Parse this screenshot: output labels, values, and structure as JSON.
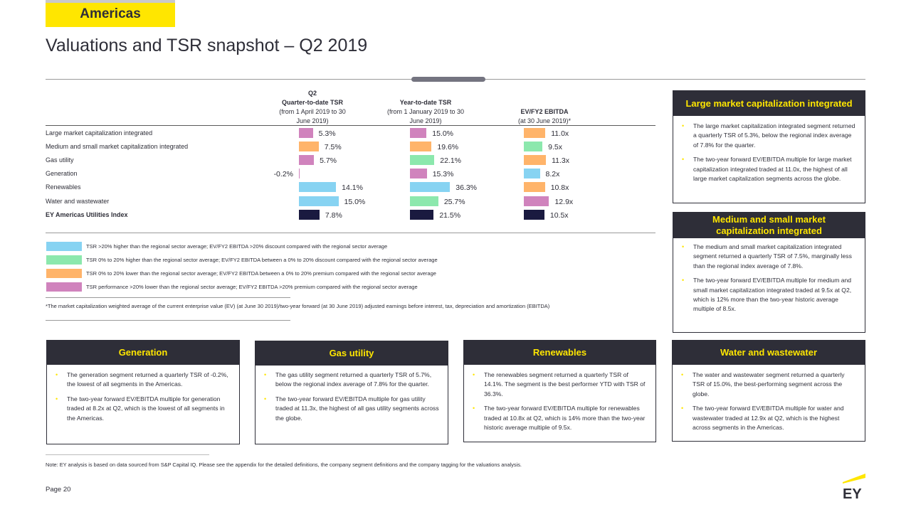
{
  "region": "Americas",
  "title": "Valuations and TSR snapshot – Q2 2019",
  "table": {
    "col_q2": {
      "l1": "Q2",
      "l2": "Quarter-to-date TSR",
      "l3": "(from 1 April 2019 to 30",
      "l4": "June 2019)"
    },
    "col_ytd": {
      "l1": "Year-to-date TSR",
      "l2": "(from 1 January 2019  to 30",
      "l3": "June 2019)"
    },
    "col_ev": {
      "l1": "EV/FY2 EBITDA",
      "l2": "(at 30 June 2019)*"
    },
    "rows": [
      {
        "label": "Large market capitalization integrated",
        "bold": false,
        "q2": "5.3%",
        "q2_v": 5.3,
        "q2_c": "pink",
        "ytd": "15.0%",
        "ytd_v": 15.0,
        "ytd_c": "pink",
        "ev": "11.0x",
        "ev_v": 11.0,
        "ev_c": "orange"
      },
      {
        "label": "Medium and small market capitalization integrated",
        "bold": false,
        "q2": "7.5%",
        "q2_v": 7.5,
        "q2_c": "orange",
        "ytd": "19.6%",
        "ytd_v": 19.6,
        "ytd_c": "orange",
        "ev": "9.5x",
        "ev_v": 9.5,
        "ev_c": "green"
      },
      {
        "label": "Gas utility",
        "bold": false,
        "q2": "5.7%",
        "q2_v": 5.7,
        "q2_c": "pink",
        "ytd": "22.1%",
        "ytd_v": 22.1,
        "ytd_c": "green",
        "ev": "11.3x",
        "ev_v": 11.3,
        "ev_c": "orange"
      },
      {
        "label": "Generation",
        "bold": false,
        "q2": "-0.2%",
        "q2_v": -0.2,
        "q2_c": "pink",
        "ytd": "15.3%",
        "ytd_v": 15.3,
        "ytd_c": "pink",
        "ev": "8.2x",
        "ev_v": 8.2,
        "ev_c": "blue"
      },
      {
        "label": "Renewables",
        "bold": false,
        "q2": "14.1%",
        "q2_v": 14.1,
        "q2_c": "blue",
        "ytd": "36.3%",
        "ytd_v": 36.3,
        "ytd_c": "blue",
        "ev": "10.8x",
        "ev_v": 10.8,
        "ev_c": "orange"
      },
      {
        "label": "Water and wastewater",
        "bold": false,
        "q2": "15.0%",
        "q2_v": 15.0,
        "q2_c": "blue",
        "ytd": "25.7%",
        "ytd_v": 25.7,
        "ytd_c": "green",
        "ev": "12.9x",
        "ev_v": 12.9,
        "ev_c": "pink"
      },
      {
        "label": "EY Americas Utilities Index",
        "bold": true,
        "q2": "7.8%",
        "q2_v": 7.8,
        "q2_c": "navy",
        "ytd": "21.5%",
        "ytd_v": 21.5,
        "ytd_c": "navy",
        "ev": "10.5x",
        "ev_v": 10.5,
        "ev_c": "navy"
      }
    ]
  },
  "colors": {
    "blue": "#87d3f2",
    "green": "#8ce8ad",
    "orange": "#ffb46a",
    "pink": "#d083bd",
    "navy": "#1a1a40",
    "ey_yellow": "#ffe600",
    "dark": "#2e2e38"
  },
  "legend": [
    {
      "color": "blue",
      "text": "TSR >20% higher than the regional sector average; EV/FY2 EBITDA >20% discount compared with the regional sector average"
    },
    {
      "color": "green",
      "text": "TSR 0% to 20% higher than the regional sector average; EV/FY2 EBITDA between a 0% to 20% discount compared with the regional sector average"
    },
    {
      "color": "orange",
      "text": "TSR 0% to 20% lower than the regional sector average; EV/FY2 EBITDA between a 0% to 20% premium compared with the regional sector average"
    },
    {
      "color": "pink",
      "text": "TSR performance >20% lower than the regional sector average; EV/FY2 EBITDA >20% premium compared with the regional sector average"
    }
  ],
  "footnote": "*The market capitalization weighted average of the current enterprise value (EV) (at June 30 2019)/two-year forward (at 30 June 2019) adjusted earnings before interest, tax, depreciation and amortization (EBITDA)",
  "panels": {
    "large": {
      "title": "Large market capitalization integrated",
      "bullets": [
        "The large market capitalization integrated segment returned a quarterly TSR of 5.3%, below the regional index average of 7.8% for the quarter.",
        "The two-year forward EV/EBITDA multiple for large market capitalization integrated traded at 11.0x, the highest of all large market capitalization segments across the globe."
      ]
    },
    "medium": {
      "title": "Medium and small market capitalization integrated",
      "bullets": [
        "The medium and small market capitalization integrated segment returned a quarterly TSR of 7.5%, marginally less than the regional index average of 7.8%.",
        "The two-year forward EV/EBITDA multiple for medium and small market capitalization integrated traded at 9.5x at Q2, which is 12% more than the two-year historic average multiple of 8.5x."
      ]
    },
    "generation": {
      "title": "Generation",
      "bullets": [
        "The generation segment returned a quarterly TSR of -0.2%, the lowest of all segments in the Americas.",
        "The two-year forward EV/EBITDA multiple for generation traded at 8.2x at Q2, which is the lowest of all segments in the Americas."
      ]
    },
    "gas": {
      "title": "Gas utility",
      "bullets": [
        "The gas utility segment returned a quarterly TSR of 5.7%, below the regional index average of 7.8% for the quarter.",
        "The two-year forward EV/EBITDA multiple for gas utility traded at 11.3x, the highest of all gas utility segments across the globe."
      ]
    },
    "renewables": {
      "title": "Renewables",
      "bullets": [
        "The renewables segment returned a quarterly TSR of 14.1%. The segment is the best performer YTD with TSR of 36.3%.",
        "The two-year forward EV/EBITDA multiple for renewables traded at 10.8x at Q2, which is 14% more than the two-year historic average multiple of 9.5x."
      ]
    },
    "water": {
      "title": "Water and wastewater",
      "bullets": [
        "The water and wastewater segment returned a quarterly TSR of 15.0%, the best-performing segment across the globe.",
        "The two-year forward EV/EBITDA multiple for water and wastewater traded at 12.9x at Q2, which is the highest across segments in the Americas."
      ]
    }
  },
  "note": "Note: EY analysis is based on data sourced from S&P Capital IQ. Please see the appendix for the detailed definitions, the company segment definitions and the company tagging for the valuations analysis.",
  "page": "Page 20",
  "logo_text": "EY"
}
